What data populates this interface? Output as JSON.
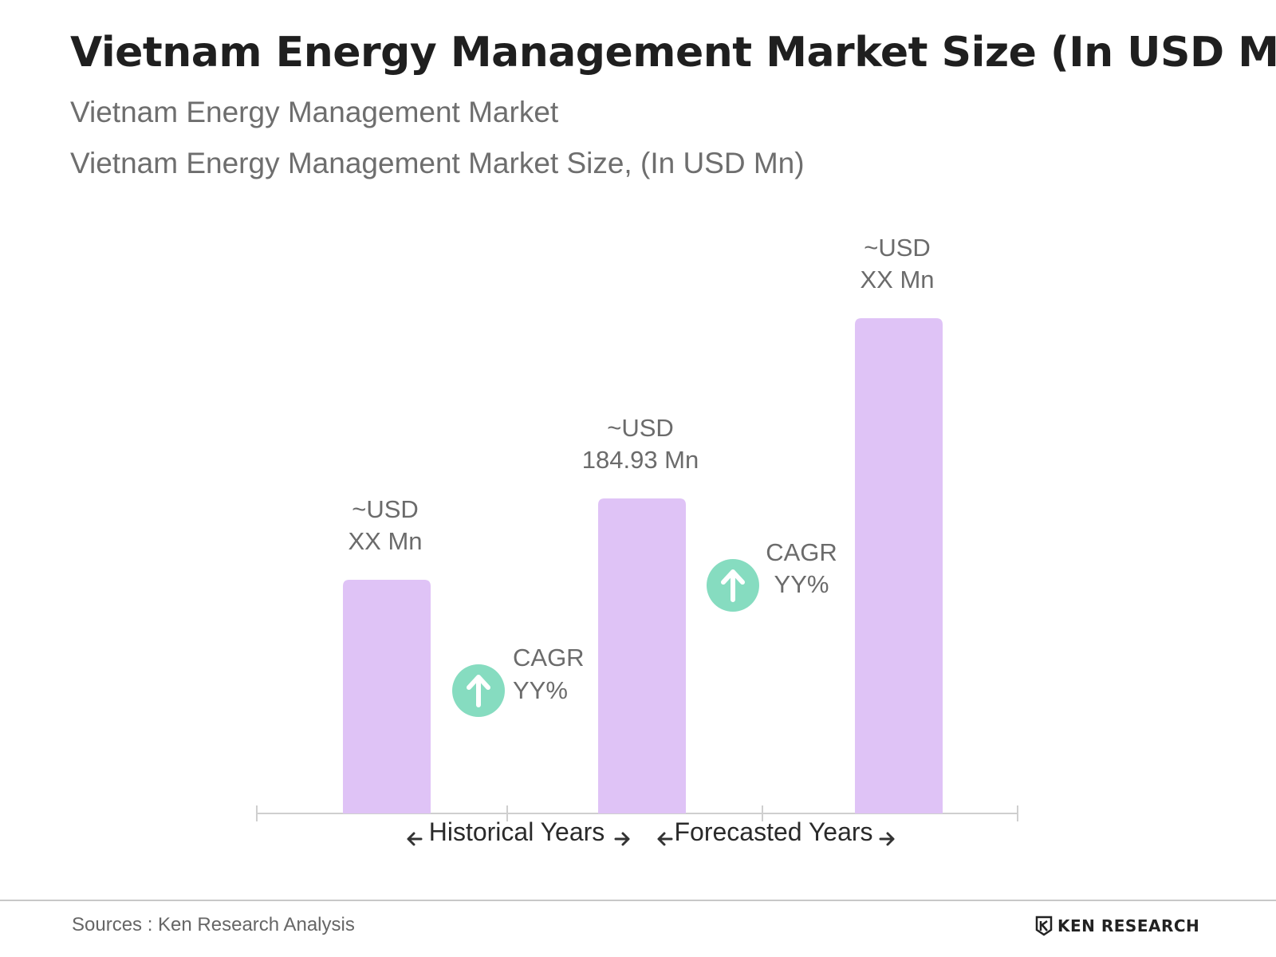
{
  "header": {
    "title": "Vietnam Energy Management Market Size (In USD Mn)",
    "subtitle": "Vietnam Energy Management Market",
    "chart_subtitle": "Vietnam Energy Management Market Size, (In USD Mn)"
  },
  "footer": {
    "source": "Sources : Ken Research Analysis",
    "brand": "KEN RESEARCH"
  },
  "colors": {
    "bar": "#dfc3f6",
    "cagr_circle": "#86dcc0",
    "axis": "#cfcfcf",
    "label": "#6b6b6b"
  },
  "chart_data": {
    "type": "bar",
    "categories": [
      "",
      "",
      ""
    ],
    "values": [
      null,
      184.93,
      null
    ],
    "bar_labels": [
      [
        "~USD",
        "XX Mn"
      ],
      [
        "~USD",
        "184.93 Mn"
      ],
      [
        "~USD",
        "XX Mn"
      ]
    ],
    "cagr_labels": [
      [
        "CAGR",
        "YY%"
      ],
      [
        "CAGR",
        "YY%"
      ]
    ],
    "period_labels": [
      "Historical Years",
      "Forecasted Years"
    ],
    "xlabel": "",
    "ylabel": "",
    "grid": false,
    "legend": "none"
  }
}
